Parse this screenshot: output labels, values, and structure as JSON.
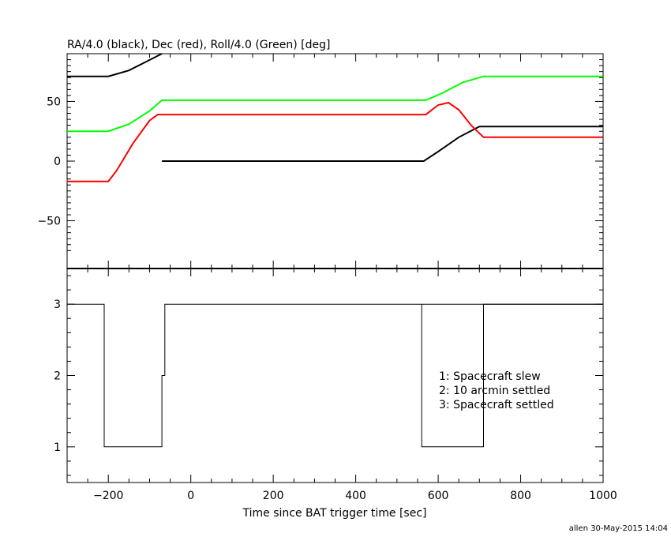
{
  "chart_data": [
    {
      "type": "line",
      "title": "RA/4.0 (black), Dec (red), Roll/4.0 (Green) [deg]",
      "xlim": [
        -300,
        1000
      ],
      "ylim": [
        -90,
        90
      ],
      "ytick_labels": [
        "−50",
        "0",
        "50"
      ],
      "ytick_values": [
        -50,
        0,
        50
      ],
      "grid": false,
      "series": [
        {
          "color": "#000000",
          "segments": [
            {
              "x": [
                -300,
                -200,
                -150,
                -110,
                -70
              ],
              "y": [
                71,
                71,
                76,
                83,
                90
              ]
            },
            {
              "x": [
                -70,
                340,
                565,
                600,
                650,
                700,
                1000
              ],
              "y": [
                0,
                0,
                0,
                8,
                20,
                29,
                29
              ]
            }
          ]
        },
        {
          "color": "#ff0000",
          "segments": [
            {
              "x": [
                -300,
                -200,
                -180,
                -140,
                -100,
                -80,
                -60,
                0,
                340,
                570,
                600,
                625,
                650,
                680,
                710,
                1000
              ],
              "y": [
                -17,
                -17,
                -8,
                15,
                34,
                39,
                39,
                39,
                39,
                39,
                47,
                49,
                43,
                30,
                20,
                20
              ]
            }
          ]
        },
        {
          "color": "#00ff00",
          "segments": [
            {
              "x": [
                -300,
                -200,
                -150,
                -100,
                -70,
                0,
                340,
                570,
                610,
                660,
                710,
                1000
              ],
              "y": [
                25,
                25,
                31,
                42,
                51,
                51,
                51,
                51,
                57,
                66,
                71,
                71
              ]
            }
          ]
        }
      ]
    },
    {
      "type": "line",
      "xlabel": "Time since BAT trigger time [sec]",
      "xlim": [
        -300,
        1000
      ],
      "ylim": [
        0.5,
        3.5
      ],
      "xtick_labels": [
        "−200",
        "0",
        "200",
        "400",
        "600",
        "800",
        "1000"
      ],
      "xtick_values": [
        -200,
        0,
        200,
        400,
        600,
        800,
        1000
      ],
      "ytick_labels": [
        "1",
        "2",
        "3"
      ],
      "ytick_values": [
        1,
        2,
        3
      ],
      "grid": false,
      "series": [
        {
          "color": "#000000",
          "x": [
            -300,
            -210,
            -210,
            -70,
            -70,
            -63,
            -63,
            1000
          ],
          "y": [
            3,
            3,
            1,
            1,
            2,
            2,
            3,
            3
          ],
          "x2": [
            560,
            560,
            710,
            710,
            1000
          ],
          "y2": [
            3,
            1,
            1,
            3,
            3
          ]
        }
      ],
      "annotations": [
        "1: Spacecraft slew",
        "2: 10 arcmin settled",
        "3: Spacecraft settled"
      ]
    }
  ],
  "footer": {
    "stamp": "allen 30-May-2015 14:04"
  }
}
